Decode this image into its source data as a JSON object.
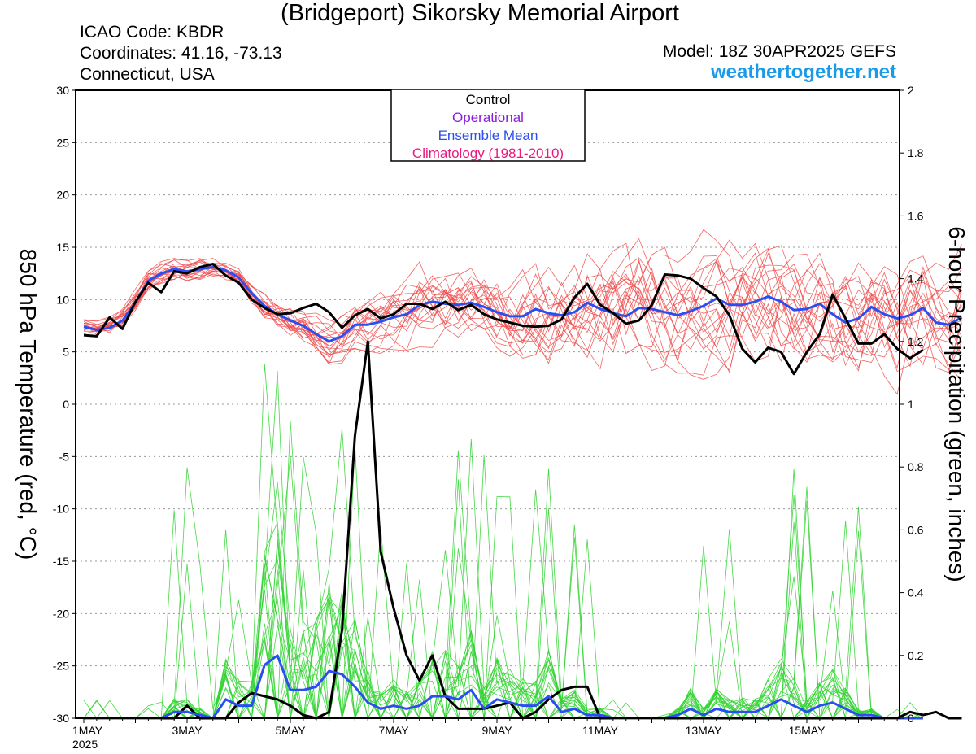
{
  "header": {
    "title": "(Bridgeport) Sikorsky Memorial Airport",
    "icao": "ICAO Code: KBDR",
    "coords": "Coordinates: 41.16, -73.13",
    "location": "Connecticut, USA",
    "model": "Model: 18Z 30APR2025 GEFS",
    "site": "weathertogether.net"
  },
  "colors": {
    "control": "#000000",
    "operational": "#8a1adb",
    "ensemble_mean": "#2b4ef0",
    "climatology": "#e8197f",
    "members_temp": "#f04a4a",
    "members_precip": "#33d433",
    "site": "#1a9ae8"
  },
  "chart_data": {
    "type": "line",
    "xlabel": "",
    "ylabel": "850 hPa Temperature (red, °C)",
    "y2label": "6-hour Precipitation (green, inches)",
    "xlim": [
      0,
      15.75
    ],
    "ylim": [
      -30,
      30
    ],
    "y2lim": [
      0,
      2
    ],
    "x_unit": "days since 1MAY 2025 00Z",
    "x_ticks": [
      {
        "x": 0,
        "label": "1MAY",
        "sub": "2025"
      },
      {
        "x": 2,
        "label": "3MAY"
      },
      {
        "x": 4,
        "label": "5MAY"
      },
      {
        "x": 6,
        "label": "7MAY"
      },
      {
        "x": 8,
        "label": "9MAY"
      },
      {
        "x": 10,
        "label": "11MAY"
      },
      {
        "x": 12,
        "label": "13MAY"
      },
      {
        "x": 14,
        "label": "15MAY"
      }
    ],
    "y_ticks": [
      "30",
      "25",
      "20",
      "15",
      "10",
      "5",
      "0",
      "-5",
      "-10",
      "-15",
      "-20",
      "-25",
      "-30"
    ],
    "y2_ticks": [
      "2",
      "1.8",
      "1.6",
      "1.4",
      "1.2",
      "1",
      "0.8",
      "0.6",
      "0.4",
      "0.2",
      "0"
    ],
    "legend": {
      "position": "top-center",
      "entries": [
        "Control",
        "Operational",
        "Ensemble Mean",
        "Climatology (1981-2010)"
      ]
    },
    "grid": true,
    "time_step_days": 0.25,
    "series": [
      {
        "name": "Ensemble Mean",
        "axis": "temperature",
        "values": [
          7.4,
          7.1,
          7.3,
          8.0,
          9.7,
          11.8,
          12.5,
          12.9,
          12.7,
          12.9,
          13.1,
          12.8,
          12.1,
          10.6,
          9.4,
          8.6,
          8.0,
          7.5,
          6.7,
          6.0,
          6.5,
          7.6,
          7.6,
          7.9,
          8.3,
          8.6,
          9.5,
          9.8,
          9.6,
          9.5,
          9.7,
          9.3,
          8.8,
          8.4,
          8.4,
          9.1,
          8.7,
          8.5,
          8.8,
          9.7,
          9.1,
          8.7,
          8.4,
          9.2,
          9.1,
          8.8,
          8.5,
          8.9,
          9.4,
          10.1,
          9.5,
          9.5,
          9.8,
          10.3,
          9.8,
          9.0,
          9.1,
          9.6,
          8.6,
          7.8,
          8.2,
          9.3,
          8.6,
          8.2,
          8.5,
          9.2,
          7.8,
          7.6,
          8.3
        ]
      },
      {
        "name": "Control",
        "axis": "temperature",
        "values": [
          6.6,
          6.5,
          8.3,
          7.2,
          9.8,
          11.6,
          10.7,
          12.7,
          12.5,
          13.1,
          13.4,
          12.3,
          11.6,
          10.0,
          9.2,
          8.6,
          8.7,
          9.2,
          9.6,
          8.8,
          7.3,
          8.5,
          9.1,
          8.2,
          8.6,
          9.6,
          9.6,
          9.1,
          9.8,
          9.0,
          9.5,
          8.6,
          8.1,
          7.8,
          7.5,
          7.4,
          7.5,
          8.1,
          10.2,
          11.5,
          9.5,
          8.7,
          7.7,
          8.0,
          9.5,
          12.4,
          12.3,
          12.0,
          11.1,
          10.3,
          8.5,
          5.3,
          4.0,
          5.4,
          5.0,
          2.9,
          5.0,
          6.7,
          10.5,
          8.2,
          5.8,
          5.8,
          6.7,
          5.3,
          4.4,
          5.2
        ]
      },
      {
        "name": "Control",
        "axis": "precipitation",
        "values": [
          0,
          0,
          0,
          0,
          0,
          0,
          0,
          0,
          0.04,
          0,
          0,
          0,
          0.05,
          0.08,
          0.07,
          0.06,
          0.04,
          0.01,
          0,
          0.02,
          0.28,
          0.9,
          1.2,
          0.53,
          0.35,
          0.2,
          0.12,
          0.2,
          0.07,
          0.03,
          0.03,
          0.03,
          0.04,
          0.05,
          0,
          0.02,
          0.06,
          0.09,
          0.1,
          0.1,
          0,
          0,
          0,
          0,
          0,
          0,
          0,
          0,
          0,
          0,
          0,
          0,
          0,
          0,
          0,
          0,
          0,
          0,
          0,
          0,
          0,
          0,
          0,
          0,
          0.02,
          0.01,
          0.02,
          0,
          0
        ]
      },
      {
        "name": "Ensemble Mean",
        "axis": "precipitation",
        "values": [
          0,
          0,
          0,
          0,
          0,
          0,
          0,
          0.02,
          0.02,
          0.01,
          0,
          0.06,
          0.04,
          0.04,
          0.17,
          0.2,
          0.09,
          0.09,
          0.1,
          0.15,
          0.14,
          0.1,
          0.05,
          0.03,
          0.04,
          0.03,
          0.04,
          0.07,
          0.07,
          0.06,
          0.09,
          0.03,
          0.06,
          0.05,
          0.04,
          0.04,
          0.07,
          0.02,
          0.03,
          0.01,
          0.01,
          0,
          0,
          0,
          0,
          0,
          0.01,
          0.03,
          0.01,
          0.03,
          0.02,
          0.02,
          0.02,
          0.04,
          0.06,
          0.04,
          0.02,
          0.04,
          0.05,
          0.03,
          0.01,
          0.01,
          0,
          0,
          0,
          0
        ]
      }
    ]
  }
}
